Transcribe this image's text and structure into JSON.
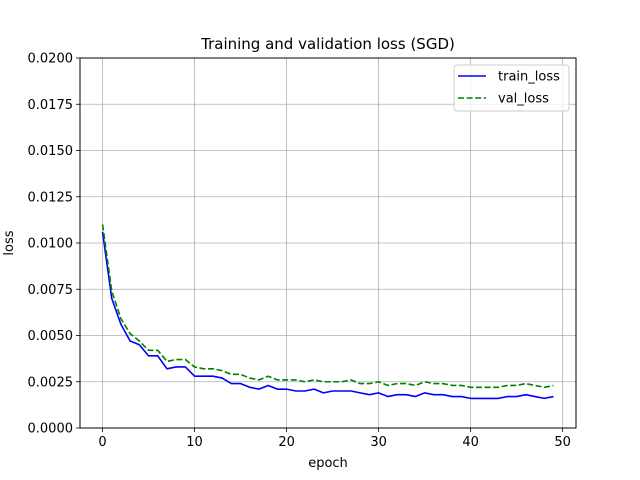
{
  "chart_data": {
    "type": "line",
    "title": "Training and validation loss (SGD)",
    "xlabel": "epoch",
    "ylabel": "loss",
    "xlim": [
      -2.45,
      51.45
    ],
    "ylim": [
      0,
      0.02
    ],
    "xticks": [
      "0",
      "10",
      "20",
      "30",
      "40",
      "50"
    ],
    "xtick_values": [
      0,
      10,
      20,
      30,
      40,
      50
    ],
    "yticks": [
      "0.0000",
      "0.0025",
      "0.0050",
      "0.0075",
      "0.0100",
      "0.0125",
      "0.0150",
      "0.0175",
      "0.0200"
    ],
    "ytick_values": [
      0,
      0.0025,
      0.005,
      0.0075,
      0.01,
      0.0125,
      0.015,
      0.0175,
      0.02
    ],
    "grid": true,
    "legend_position": "top-right",
    "x": [
      0,
      1,
      2,
      3,
      4,
      5,
      6,
      7,
      8,
      9,
      10,
      11,
      12,
      13,
      14,
      15,
      16,
      17,
      18,
      19,
      20,
      21,
      22,
      23,
      24,
      25,
      26,
      27,
      28,
      29,
      30,
      31,
      32,
      33,
      34,
      35,
      36,
      37,
      38,
      39,
      40,
      41,
      42,
      43,
      44,
      45,
      46,
      47,
      48,
      49
    ],
    "series": [
      {
        "name": "train_loss",
        "color": "#0000ff",
        "style": "solid",
        "values": [
          0.0106,
          0.007,
          0.0056,
          0.0047,
          0.0045,
          0.0039,
          0.0039,
          0.0032,
          0.0033,
          0.0033,
          0.0028,
          0.0028,
          0.0028,
          0.0027,
          0.0024,
          0.0024,
          0.0022,
          0.0021,
          0.0023,
          0.0021,
          0.0021,
          0.002,
          0.002,
          0.0021,
          0.0019,
          0.002,
          0.002,
          0.002,
          0.0019,
          0.0018,
          0.0019,
          0.0017,
          0.0018,
          0.0018,
          0.0017,
          0.0019,
          0.0018,
          0.0018,
          0.0017,
          0.0017,
          0.0016,
          0.0016,
          0.0016,
          0.0016,
          0.0017,
          0.0017,
          0.0018,
          0.0017,
          0.0016,
          0.0017
        ]
      },
      {
        "name": "val_loss",
        "color": "#008000",
        "style": "dashed",
        "values": [
          0.011,
          0.0074,
          0.0059,
          0.0051,
          0.0047,
          0.0042,
          0.0042,
          0.0036,
          0.0037,
          0.0037,
          0.0033,
          0.0032,
          0.0032,
          0.0031,
          0.0029,
          0.0029,
          0.0027,
          0.0026,
          0.0028,
          0.0026,
          0.0026,
          0.0026,
          0.0025,
          0.0026,
          0.0025,
          0.0025,
          0.0025,
          0.0026,
          0.0024,
          0.0024,
          0.0025,
          0.0023,
          0.0024,
          0.0024,
          0.0023,
          0.0025,
          0.0024,
          0.0024,
          0.0023,
          0.0023,
          0.0022,
          0.0022,
          0.0022,
          0.0022,
          0.0023,
          0.0023,
          0.0024,
          0.0023,
          0.0022,
          0.0023
        ]
      }
    ]
  }
}
